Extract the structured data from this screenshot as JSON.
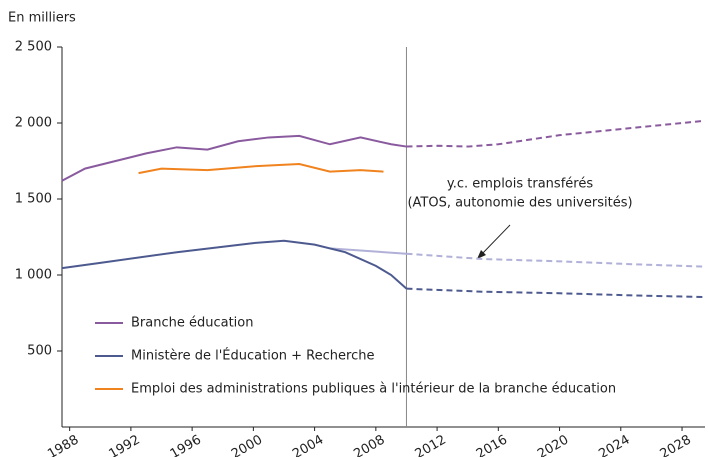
{
  "chart_data": {
    "type": "line",
    "y_axis_label": "En milliers",
    "xlim": [
      1987.5,
      2029.5
    ],
    "xticks": [
      1988,
      1992,
      1996,
      2000,
      2004,
      2008,
      2012,
      2016,
      2020,
      2024,
      2028
    ],
    "ylim": [
      0,
      2500
    ],
    "yticks": [
      500,
      {
        "value": 1000,
        "label": "1 000"
      },
      {
        "value": 1500,
        "label": "1 500"
      },
      {
        "value": 2000,
        "label": "2 000"
      },
      {
        "value": 2500,
        "label": "2 500"
      }
    ],
    "projection_start": 2010,
    "series": [
      {
        "name": "Branche éducation",
        "color": "#8a5a9e",
        "x": [
          1987.5,
          1989,
          1991,
          1993,
          1995,
          1997,
          1999,
          2001,
          2003,
          2005,
          2007,
          2009,
          2010,
          2012,
          2014,
          2016,
          2020,
          2024,
          2028,
          2029.5
        ],
        "values": [
          1620,
          1700,
          1750,
          1800,
          1840,
          1825,
          1880,
          1905,
          1915,
          1860,
          1905,
          1860,
          1845,
          1850,
          1845,
          1860,
          1920,
          1960,
          2000,
          2015
        ]
      },
      {
        "name": "Ministère de l'Éducation + Recherche",
        "color": "#4d5a8f",
        "x": [
          1987.5,
          1990,
          1995,
          2000,
          2002,
          2004,
          2006,
          2008,
          2009,
          2010,
          2015,
          2020,
          2025,
          2029.5
        ],
        "values": [
          1045,
          1080,
          1150,
          1210,
          1225,
          1200,
          1150,
          1060,
          1000,
          910,
          890,
          880,
          865,
          855
        ]
      },
      {
        "name": "Emploi des administrations publiques à l'intérieur de la branche éducation",
        "color": "#f0831e",
        "x": [
          1992.5,
          1994,
          1997,
          2000,
          2003,
          2005,
          2007,
          2008.5
        ],
        "values": [
          1670,
          1700,
          1690,
          1715,
          1730,
          1680,
          1690,
          1680
        ]
      }
    ],
    "annotation": {
      "lines": [
        "y.c. emplois transférés",
        "(ATOS, autonomie des universités)"
      ],
      "color": "#b0b0d8",
      "x": [
        2005,
        2010,
        2015,
        2020,
        2025,
        2029.5
      ],
      "values": [
        1175,
        1140,
        1105,
        1090,
        1070,
        1055
      ]
    }
  }
}
